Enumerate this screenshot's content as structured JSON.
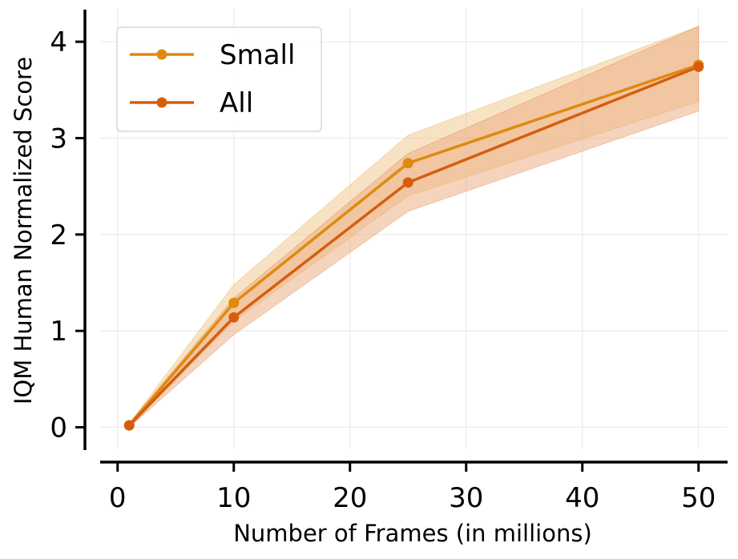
{
  "chart_data": {
    "type": "line",
    "xlabel": "Number of Frames (in millions)",
    "ylabel": "IQM Human Normalized Score",
    "xlim": [
      -1.5,
      52.5
    ],
    "ylim": [
      -0.22,
      4.35
    ],
    "xticks": [
      0,
      10,
      20,
      30,
      40,
      50
    ],
    "yticks": [
      0,
      1,
      2,
      3,
      4
    ],
    "grid": true,
    "legend_position": "top-left",
    "x": [
      1,
      10,
      25,
      50
    ],
    "series": [
      {
        "name": "Small",
        "color": "#df8a0f",
        "band_color": "#efc889",
        "values": [
          0.02,
          1.29,
          2.74,
          3.76
        ],
        "lower": [
          0.0,
          1.1,
          2.4,
          3.38
        ],
        "upper": [
          0.04,
          1.48,
          3.03,
          4.16
        ]
      },
      {
        "name": "All",
        "color": "#d65d0e",
        "band_color": "#eba97e",
        "values": [
          0.02,
          1.14,
          2.54,
          3.74
        ],
        "lower": [
          0.0,
          0.96,
          2.24,
          3.28
        ],
        "upper": [
          0.04,
          1.34,
          2.84,
          4.16
        ]
      }
    ]
  }
}
